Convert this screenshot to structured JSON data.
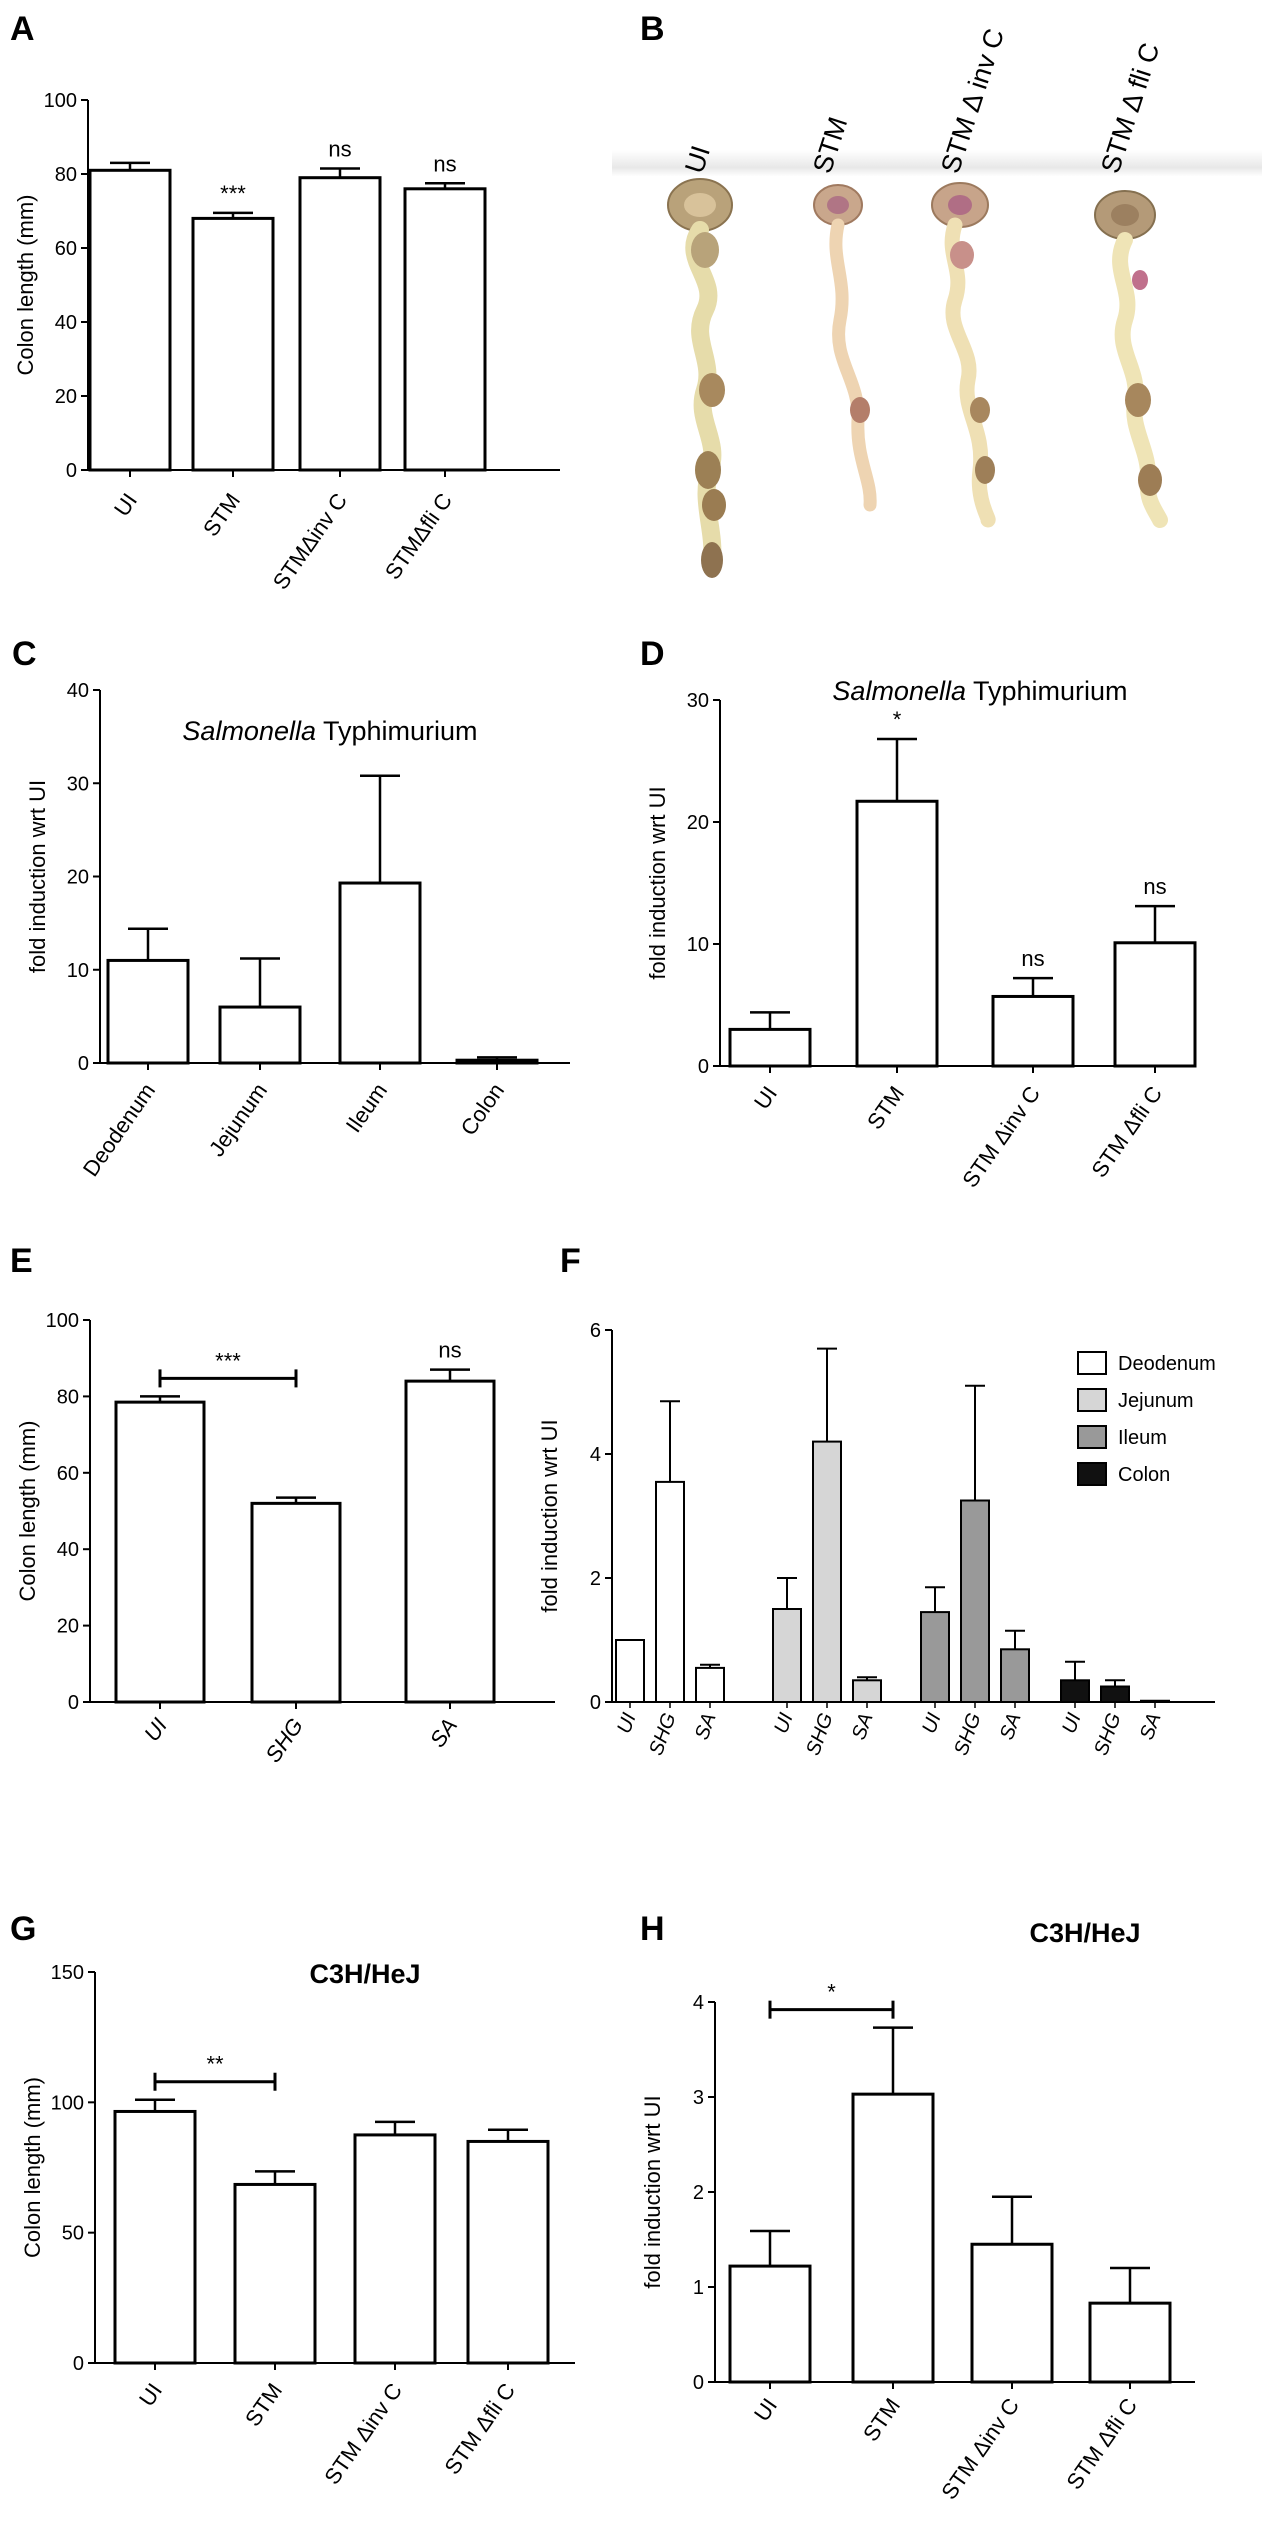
{
  "colors": {
    "deodenum": "#ffffff",
    "jejunum": "#d6d6d6",
    "ileum": "#999999",
    "colon": "#111111",
    "bar_stroke": "#000000"
  },
  "panels": {
    "A": "A",
    "B": "B",
    "C": "C",
    "D": "D",
    "E": "E",
    "F": "F",
    "G": "G",
    "H": "H"
  },
  "photo": {
    "labels": [
      "UI",
      "STM",
      "STM Δ inv C",
      "STM Δ fli C"
    ],
    "description_icon": "colon-photo"
  },
  "chart_data": [
    {
      "id": "A",
      "type": "bar",
      "title": "",
      "ylabel": "Colon length (mm)",
      "xlabel": "",
      "ylim": [
        0,
        100
      ],
      "yticks": [
        0,
        20,
        40,
        60,
        80,
        100
      ],
      "categories": [
        "UI",
        "STM",
        "STMΔinv C",
        "STMΔfli C"
      ],
      "values": [
        81,
        68,
        79,
        76
      ],
      "errors": [
        2,
        1.5,
        2.5,
        1.5
      ],
      "annotations": [
        "",
        "***",
        "ns",
        "ns"
      ]
    },
    {
      "id": "C",
      "type": "bar",
      "title_italic": "Salmonella",
      "title_rest": " Typhimurium",
      "ylabel": "fold induction wrt UI",
      "xlabel": "",
      "ylim": [
        0,
        40
      ],
      "yticks": [
        0,
        10,
        20,
        30,
        40
      ],
      "categories": [
        "Deodenum",
        "Jejunum",
        "Ileum",
        "Colon"
      ],
      "values": [
        11,
        6,
        19.3,
        0.3
      ],
      "errors": [
        3.4,
        5.2,
        11.5,
        0.3
      ],
      "annotations": [
        "",
        "",
        "",
        ""
      ]
    },
    {
      "id": "D",
      "type": "bar",
      "title_italic": "Salmonella",
      "title_rest": " Typhimurium",
      "ylabel": "fold induction wrt UI",
      "xlabel": "",
      "ylim": [
        0,
        30
      ],
      "yticks": [
        0,
        10,
        20,
        30
      ],
      "categories": [
        "UI",
        "STM",
        "STM Δinv C",
        "STM Δfli C"
      ],
      "values": [
        3,
        21.7,
        5.7,
        10.1
      ],
      "errors": [
        1.4,
        5.1,
        1.5,
        3
      ],
      "annotations": [
        "",
        "*",
        "ns",
        "ns"
      ]
    },
    {
      "id": "E",
      "type": "bar",
      "title": "",
      "ylabel": "Colon length (mm)",
      "xlabel": "",
      "ylim": [
        0,
        100
      ],
      "yticks": [
        0,
        20,
        40,
        60,
        80,
        100
      ],
      "categories": [
        "UI",
        "SHG",
        "SA"
      ],
      "values": [
        78.5,
        52,
        84
      ],
      "errors": [
        1.5,
        1.5,
        3
      ],
      "annotations": [
        "",
        "",
        "ns"
      ],
      "bracket": {
        "from": 0,
        "to": 1,
        "label": "***"
      }
    },
    {
      "id": "F",
      "type": "bar",
      "title": "",
      "ylabel": "fold induction wrt UI",
      "xlabel": "",
      "ylim": [
        0,
        6
      ],
      "yticks": [
        0,
        2,
        4,
        6
      ],
      "categories": [
        "UI",
        "SHG",
        "SA"
      ],
      "legend_position": "top-right",
      "series": [
        {
          "name": "Deodenum",
          "values": [
            1.0,
            3.55,
            0.55
          ],
          "errors": [
            0,
            1.3,
            0.05
          ]
        },
        {
          "name": "Jejunum",
          "values": [
            1.5,
            4.2,
            0.35
          ],
          "errors": [
            0.5,
            1.5,
            0.05
          ]
        },
        {
          "name": "Ileum",
          "values": [
            1.45,
            3.25,
            0.85
          ],
          "errors": [
            0.4,
            1.85,
            0.3
          ]
        },
        {
          "name": "Colon",
          "values": [
            0.35,
            0.25,
            0.02
          ],
          "errors": [
            0.3,
            0.1,
            0
          ]
        }
      ]
    },
    {
      "id": "G",
      "type": "bar",
      "title": "C3H/HeJ",
      "ylabel": "Colon length (mm)",
      "xlabel": "",
      "ylim": [
        0,
        150
      ],
      "yticks": [
        0,
        50,
        100,
        150
      ],
      "categories": [
        "UI",
        "STM",
        "STM Δinv C",
        "STM Δfli C"
      ],
      "values": [
        96.5,
        68.5,
        87.5,
        85
      ],
      "errors": [
        4.5,
        5,
        5,
        4.5
      ],
      "annotations": [
        "",
        "",
        "",
        ""
      ],
      "bracket": {
        "from": 0,
        "to": 1,
        "label": "**"
      }
    },
    {
      "id": "H",
      "type": "bar",
      "title": "C3H/HeJ",
      "ylabel": "fold induction wrt UI",
      "xlabel": "",
      "ylim": [
        0,
        4
      ],
      "yticks": [
        0,
        1,
        2,
        3,
        4
      ],
      "categories": [
        "UI",
        "STM",
        "STM Δinv C",
        "STM Δfli C"
      ],
      "values": [
        1.22,
        3.03,
        1.45,
        0.83
      ],
      "errors": [
        0.37,
        0.7,
        0.5,
        0.37
      ],
      "annotations": [
        "",
        "",
        "",
        ""
      ],
      "bracket": {
        "from": 0,
        "to": 1,
        "label": "*"
      }
    }
  ]
}
